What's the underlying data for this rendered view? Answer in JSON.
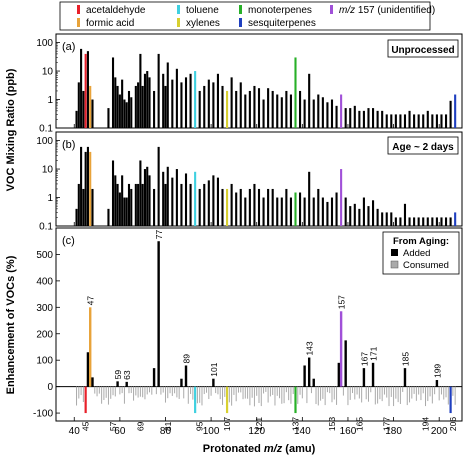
{
  "legend": [
    {
      "label": "acetaldehyde",
      "color": "#e8202a"
    },
    {
      "label": "formic acid",
      "color": "#e8a33a"
    },
    {
      "label": "toluene",
      "color": "#3fd0e0"
    },
    {
      "label": "xylenes",
      "color": "#d8d030"
    },
    {
      "label": "monoterpenes",
      "color": "#28b028"
    },
    {
      "label": "sesquiterpenes",
      "color": "#1f3fbf"
    },
    {
      "label_italic": "m/z",
      "label": " 157 (unidentified)",
      "color": "#a050d8"
    }
  ],
  "chart_data": [
    {
      "type": "bar",
      "panel_label": "(a)",
      "box_label": "Unprocessed",
      "ylabel_shared": "VOC Mixing Ratio (ppb)",
      "y_scale": "log",
      "ylim": [
        0.1,
        200
      ],
      "y_ticks": [
        "100",
        "10",
        "1",
        "0.1"
      ],
      "x": [
        41,
        42,
        43,
        44,
        45,
        46,
        47,
        48,
        55,
        57,
        58,
        59,
        60,
        61,
        62,
        63,
        64,
        65,
        67,
        68,
        69,
        70,
        71,
        72,
        73,
        75,
        77,
        79,
        80,
        81,
        83,
        85,
        87,
        89,
        91,
        93,
        95,
        97,
        99,
        101,
        103,
        105,
        107,
        109,
        111,
        113,
        115,
        117,
        119,
        121,
        123,
        125,
        127,
        129,
        131,
        133,
        135,
        137,
        139,
        141,
        143,
        145,
        147,
        149,
        151,
        153,
        155,
        157,
        159,
        161,
        163,
        165,
        167,
        169,
        171,
        173,
        175,
        177,
        179,
        181,
        183,
        185,
        187,
        189,
        191,
        193,
        195,
        197,
        199,
        201,
        203,
        205,
        207
      ],
      "values": [
        0.4,
        4,
        60,
        2,
        40,
        50,
        3,
        1,
        0.5,
        30,
        6,
        3,
        1.5,
        5,
        1,
        0.8,
        2,
        1.2,
        3,
        4,
        40,
        3,
        8,
        10,
        6,
        2,
        40,
        8,
        3,
        20,
        5,
        12,
        4,
        6,
        8,
        10,
        2,
        3,
        5,
        4,
        8,
        3,
        2,
        6,
        2,
        4,
        1.5,
        2,
        3,
        2.5,
        1,
        2.5,
        2,
        1.5,
        1.2,
        2,
        1.5,
        30,
        2,
        1,
        8,
        1,
        1.5,
        1.2,
        0.8,
        1,
        0.6,
        1.5,
        0.5,
        0.5,
        0.6,
        0.4,
        0.4,
        0.5,
        0.5,
        0.4,
        0.4,
        0.3,
        0.3,
        0.3,
        0.3,
        0.3,
        0.4,
        0.3,
        0.3,
        0.3,
        0.4,
        0.3,
        0.3,
        0.3,
        0.3,
        0.9,
        1.5
      ]
    },
    {
      "type": "bar",
      "panel_label": "(b)",
      "box_label": "Age ~ 2 days",
      "y_scale": "log",
      "ylim": [
        0.1,
        200
      ],
      "y_ticks": [
        "100",
        "10",
        "1",
        "0.1"
      ],
      "x": [
        41,
        42,
        43,
        44,
        45,
        46,
        47,
        48,
        55,
        57,
        58,
        59,
        60,
        61,
        62,
        63,
        64,
        65,
        67,
        68,
        69,
        70,
        71,
        72,
        73,
        75,
        77,
        79,
        80,
        81,
        83,
        85,
        87,
        89,
        91,
        93,
        95,
        97,
        99,
        101,
        103,
        105,
        107,
        109,
        111,
        113,
        115,
        117,
        119,
        121,
        123,
        125,
        127,
        129,
        131,
        133,
        135,
        137,
        139,
        141,
        143,
        145,
        147,
        149,
        151,
        153,
        155,
        157,
        159,
        161,
        163,
        165,
        167,
        169,
        171,
        173,
        175,
        177,
        179,
        181,
        183,
        185,
        187,
        189,
        191,
        193,
        195,
        197,
        199,
        201,
        203,
        205,
        207
      ],
      "values": [
        0.4,
        3,
        60,
        2,
        40,
        60,
        40,
        2,
        0.4,
        20,
        6,
        3,
        1.5,
        6,
        1,
        1,
        3,
        2,
        3,
        3,
        20,
        3,
        10,
        12,
        6,
        2,
        60,
        8,
        3,
        12,
        5,
        10,
        3,
        7,
        3,
        8,
        2,
        3,
        4,
        6,
        5,
        2,
        2,
        3,
        1.5,
        2,
        1,
        2,
        3,
        2,
        1,
        2,
        2,
        1,
        1,
        2,
        1,
        1.5,
        1.5,
        1,
        8,
        1,
        2,
        1,
        0.7,
        1,
        1.5,
        10,
        1,
        0.5,
        0.6,
        0.4,
        1,
        0.5,
        0.8,
        0.4,
        0.3,
        0.3,
        0.3,
        0.2,
        0.2,
        0.6,
        0.2,
        0.2,
        0.2,
        0.2,
        0.2,
        0.2,
        0.2,
        0.2,
        0.2,
        0.2,
        0.3
      ]
    },
    {
      "type": "bar",
      "panel_label": "(c)",
      "ylabel": "Enhancement of VOCs (%)",
      "xlabel_prefix": "Protonated ",
      "xlabel_italic": "m/z",
      "xlabel_suffix": "  (amu)",
      "xlim": [
        32,
        210
      ],
      "x_ticks": [
        "40",
        "60",
        "80",
        "100",
        "120",
        "140",
        "160",
        "180",
        "200"
      ],
      "ylim": [
        -130,
        600
      ],
      "y_ticks": [
        "500",
        "400",
        "300",
        "200",
        "100",
        "0",
        "-100"
      ],
      "legend_title": "From Aging:",
      "legend_items": [
        {
          "label": "Added",
          "color": "#000000"
        },
        {
          "label": "Consumed",
          "color": "#aaaaaa"
        }
      ],
      "positive_bars": [
        {
          "x": 46,
          "value": 130
        },
        {
          "x": 47,
          "value": 300,
          "label": "47"
        },
        {
          "x": 48,
          "value": 35
        },
        {
          "x": 59,
          "value": 20,
          "label": "59"
        },
        {
          "x": 63,
          "value": 18,
          "label": "63"
        },
        {
          "x": 75,
          "value": 70
        },
        {
          "x": 77,
          "value": 550,
          "label": "77"
        },
        {
          "x": 87,
          "value": 30
        },
        {
          "x": 89,
          "value": 80,
          "label": "89"
        },
        {
          "x": 101,
          "value": 30,
          "label": "101"
        },
        {
          "x": 141,
          "value": 80
        },
        {
          "x": 143,
          "value": 110,
          "label": "143"
        },
        {
          "x": 145,
          "value": 30
        },
        {
          "x": 156,
          "value": 90
        },
        {
          "x": 157,
          "value": 285,
          "label": "157"
        },
        {
          "x": 159,
          "value": 175
        },
        {
          "x": 167,
          "value": 70,
          "label": "167"
        },
        {
          "x": 171,
          "value": 90,
          "label": "171"
        },
        {
          "x": 185,
          "value": 70,
          "label": "185"
        },
        {
          "x": 199,
          "value": 25,
          "label": "199"
        }
      ],
      "negative_labels": [
        "45",
        "57",
        "69",
        "81",
        "95",
        "107",
        "121",
        "137",
        "153",
        "165",
        "177",
        "194",
        "206"
      ],
      "negative_label_x": [
        45,
        57,
        69,
        81,
        95,
        107,
        121,
        137,
        153,
        165,
        177,
        194,
        206
      ]
    }
  ]
}
